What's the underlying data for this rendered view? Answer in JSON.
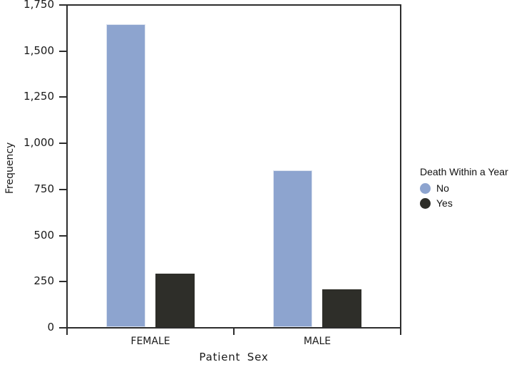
{
  "chart_data": {
    "type": "bar",
    "title": "",
    "xlabel": "Patient Sex",
    "ylabel": "Frequency",
    "categories": [
      "FEMALE",
      "MALE"
    ],
    "series": [
      {
        "name": "No",
        "color": "#8da4cf",
        "values": [
          1640,
          850
        ]
      },
      {
        "name": "Yes",
        "color": "#2e2e29",
        "values": [
          290,
          205
        ]
      }
    ],
    "ylim": [
      0,
      1750
    ],
    "ytick_step": 250,
    "ytick_labels": [
      "0",
      "250",
      "500",
      "750",
      "1,000",
      "1,250",
      "1,500",
      "1,750"
    ],
    "grid": false,
    "legend": {
      "title": "Death Within a Year",
      "position": "right",
      "items": [
        "No",
        "Yes"
      ]
    },
    "colors": {
      "axis": "#2d2d2d",
      "text": "#1a1a1a",
      "background": "#ffffff"
    }
  }
}
